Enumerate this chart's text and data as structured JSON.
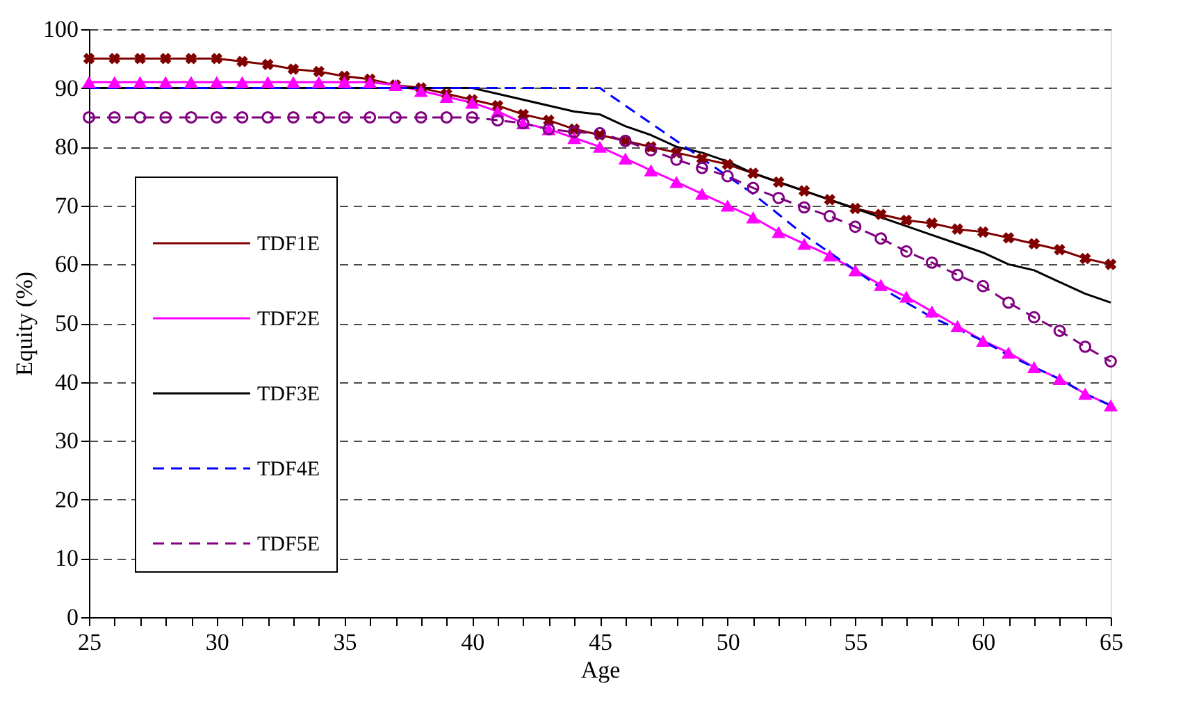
{
  "chart_data": {
    "type": "line",
    "xlabel": "Age",
    "ylabel": "Equity (%)",
    "x": [
      25,
      26,
      27,
      28,
      29,
      30,
      31,
      32,
      33,
      34,
      35,
      36,
      37,
      38,
      39,
      40,
      41,
      42,
      43,
      44,
      45,
      46,
      47,
      48,
      49,
      50,
      51,
      52,
      53,
      54,
      55,
      56,
      57,
      58,
      59,
      60,
      61,
      62,
      63,
      64,
      65
    ],
    "series": [
      {
        "name": "TDF1E",
        "color": "#800000",
        "marker": "cross",
        "line_style": "solid",
        "values": [
          95,
          95,
          95,
          95,
          95,
          95,
          94.5,
          94,
          93.2,
          92.8,
          92,
          91.5,
          90.5,
          90,
          89,
          88,
          87,
          85.5,
          84.5,
          83,
          82,
          81,
          80,
          79,
          78,
          77,
          75.5,
          74,
          72.5,
          71,
          69.5,
          68.5,
          67.5,
          67,
          66,
          65.5,
          64.5,
          63.5,
          62.5,
          61,
          60
        ]
      },
      {
        "name": "TDF2E",
        "color": "#ff00ff",
        "marker": "triangle",
        "line_style": "solid",
        "values": [
          91,
          91,
          91,
          91,
          91,
          91,
          91,
          91,
          91,
          91,
          91,
          91,
          90.5,
          89.5,
          88.5,
          87.5,
          86,
          84,
          83,
          81.5,
          80,
          78,
          76,
          74,
          72,
          70,
          68,
          65.5,
          63.5,
          61.5,
          59,
          56.5,
          54.5,
          52,
          49.5,
          47,
          45,
          42.5,
          40.5,
          38,
          36
        ]
      },
      {
        "name": "TDF3E",
        "color": "#000000",
        "marker": "none",
        "line_style": "solid",
        "values": [
          90,
          90,
          90,
          90,
          90,
          90,
          90,
          90,
          90,
          90,
          90,
          90,
          90,
          90,
          90,
          90,
          89,
          88,
          87,
          86,
          85.5,
          83.5,
          82,
          80,
          79,
          77.5,
          75.5,
          74,
          72.5,
          71,
          69.5,
          68,
          66.5,
          65,
          63.5,
          62,
          60,
          59,
          57,
          55,
          53.5
        ]
      },
      {
        "name": "TDF4E",
        "color": "#0000ff",
        "marker": "none",
        "line_style": "dashed",
        "values": [
          90,
          90,
          90,
          90,
          90,
          90,
          90,
          90,
          90,
          90,
          90,
          90,
          90,
          90,
          90,
          90,
          90,
          90,
          90,
          90,
          90,
          87,
          84,
          81,
          78,
          75,
          72,
          68.5,
          65,
          62,
          59,
          56,
          53.5,
          51,
          49,
          47,
          44.5,
          42.5,
          40.5,
          38,
          36
        ]
      },
      {
        "name": "TDF5E",
        "color": "#800080",
        "marker": "circle",
        "line_style": "dashed",
        "values": [
          85,
          85,
          85,
          85,
          85,
          85,
          85,
          85,
          85,
          85,
          85,
          85,
          85,
          85,
          85,
          85,
          84.5,
          84,
          83,
          82.5,
          82.3,
          81,
          79.4,
          77.8,
          76.4,
          75,
          73,
          71.3,
          69.7,
          68.2,
          66.4,
          64.4,
          62.2,
          60.3,
          58.2,
          56.3,
          53.5,
          51,
          48.7,
          46,
          43.5
        ]
      }
    ],
    "xlim": [
      25,
      65
    ],
    "xticks": [
      25,
      {
        "value": 26,
        "label": null
      },
      {
        "value": 27,
        "label": null
      },
      {
        "value": 28,
        "label": null
      },
      {
        "value": 29,
        "label": null
      },
      30,
      {
        "value": 31,
        "label": null
      },
      {
        "value": 32,
        "label": null
      },
      {
        "value": 33,
        "label": null
      },
      {
        "value": 34,
        "label": null
      },
      35,
      {
        "value": 36,
        "label": null
      },
      {
        "value": 37,
        "label": null
      },
      {
        "value": 38,
        "label": null
      },
      {
        "value": 39,
        "label": null
      },
      40,
      {
        "value": 41,
        "label": null
      },
      {
        "value": 42,
        "label": null
      },
      {
        "value": 43,
        "label": null
      },
      {
        "value": 44,
        "label": null
      },
      45,
      {
        "value": 46,
        "label": null
      },
      {
        "value": 47,
        "label": null
      },
      {
        "value": 48,
        "label": null
      },
      {
        "value": 49,
        "label": null
      },
      50,
      {
        "value": 51,
        "label": null
      },
      {
        "value": 52,
        "label": null
      },
      {
        "value": 53,
        "label": null
      },
      {
        "value": 54,
        "label": null
      },
      55,
      {
        "value": 56,
        "label": null
      },
      {
        "value": 57,
        "label": null
      },
      {
        "value": 58,
        "label": null
      },
      {
        "value": 59,
        "label": null
      },
      60,
      {
        "value": 61,
        "label": null
      },
      {
        "value": 62,
        "label": null
      },
      {
        "value": 63,
        "label": null
      },
      {
        "value": 64,
        "label": null
      },
      65
    ],
    "ylim": [
      0,
      100
    ],
    "yticks": [
      0,
      10,
      20,
      30,
      40,
      50,
      60,
      70,
      80,
      90,
      100
    ],
    "grid": "y",
    "legend": "bottom left"
  }
}
